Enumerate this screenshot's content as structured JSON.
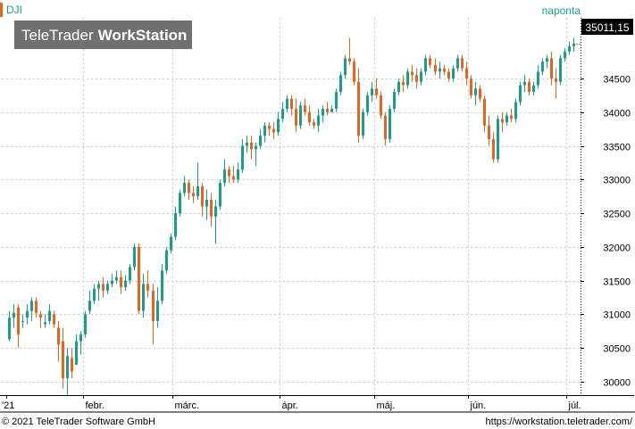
{
  "header": {
    "symbol": "DJI",
    "period": "naponta"
  },
  "watermark": {
    "brand_light": "TeleTrader",
    "brand_bold": "WorkStation"
  },
  "footer": {
    "copyright": "© 2021 TeleTrader Software GmbH",
    "url": "https://workstation.teletrader.com/"
  },
  "colors": {
    "up": "#1a9e8c",
    "down": "#e8631c",
    "accent": "#1a9e8c",
    "grid": "#c8c8c8"
  },
  "chart_data": {
    "type": "candlestick",
    "title": "",
    "xlabel": "",
    "ylabel": "",
    "ylim": [
      29800,
      35400
    ],
    "y_ticks": [
      30000,
      30500,
      31000,
      31500,
      32000,
      32500,
      33000,
      33500,
      34000,
      34500
    ],
    "last_price": "35011,15",
    "x_labels": [
      {
        "label": "'21",
        "index": 0
      },
      {
        "label": "febr.",
        "index": 17
      },
      {
        "label": "márc.",
        "index": 37
      },
      {
        "label": "ápr.",
        "index": 61
      },
      {
        "label": "máj.",
        "index": 82
      },
      {
        "label": "jún.",
        "index": 103
      },
      {
        "label": "júl.",
        "index": 125
      }
    ],
    "candles": [
      [
        30630,
        31050,
        30600,
        30950
      ],
      [
        30950,
        31150,
        30800,
        31020
      ],
      [
        31100,
        31150,
        30500,
        30700
      ],
      [
        30900,
        31000,
        30800,
        30900
      ],
      [
        30950,
        31150,
        30850,
        31050
      ],
      [
        31050,
        31250,
        30900,
        31200
      ],
      [
        31200,
        31250,
        30950,
        31020
      ],
      [
        31000,
        31050,
        30800,
        30950
      ],
      [
        30850,
        31000,
        30800,
        30880
      ],
      [
        30900,
        31150,
        30850,
        31050
      ],
      [
        31000,
        31050,
        30800,
        30850
      ],
      [
        30800,
        30900,
        30300,
        30550
      ],
      [
        30600,
        30800,
        29900,
        30050
      ],
      [
        30050,
        30500,
        29800,
        30380
      ],
      [
        30350,
        30500,
        30050,
        30150
      ],
      [
        30250,
        30700,
        30250,
        30600
      ],
      [
        30600,
        30750,
        30400,
        30700
      ],
      [
        30700,
        31050,
        30650,
        31000
      ],
      [
        31050,
        31350,
        31000,
        31200
      ],
      [
        31200,
        31450,
        31150,
        31380
      ],
      [
        31380,
        31500,
        31200,
        31450
      ],
      [
        31450,
        31550,
        31250,
        31350
      ],
      [
        31350,
        31500,
        31300,
        31450
      ],
      [
        31450,
        31600,
        31400,
        31500
      ],
      [
        31500,
        31650,
        31450,
        31550
      ],
      [
        31550,
        31650,
        31300,
        31400
      ],
      [
        31400,
        31580,
        31350,
        31500
      ],
      [
        31500,
        31750,
        31450,
        31700
      ],
      [
        31700,
        32050,
        31650,
        32000
      ],
      [
        32000,
        32050,
        31000,
        31050
      ],
      [
        31050,
        31600,
        30950,
        31450
      ],
      [
        31450,
        31650,
        31250,
        31350
      ],
      [
        31350,
        31450,
        30550,
        30900
      ],
      [
        30900,
        31400,
        30800,
        31200
      ],
      [
        31200,
        31750,
        31150,
        31650
      ],
      [
        31650,
        32000,
        31600,
        31950
      ],
      [
        31950,
        32200,
        31900,
        32150
      ],
      [
        32150,
        32600,
        32100,
        32500
      ],
      [
        32500,
        32850,
        32450,
        32800
      ],
      [
        32800,
        33050,
        32750,
        32950
      ],
      [
        32950,
        33000,
        32700,
        32800
      ],
      [
        32800,
        32900,
        32650,
        32750
      ],
      [
        32750,
        33250,
        32700,
        32900
      ],
      [
        32900,
        32950,
        32450,
        32600
      ],
      [
        32600,
        32850,
        32400,
        32700
      ],
      [
        32700,
        32800,
        32300,
        32450
      ],
      [
        32450,
        32700,
        32050,
        32600
      ],
      [
        32600,
        33000,
        32550,
        32950
      ],
      [
        32950,
        33300,
        32900,
        33150
      ],
      [
        33150,
        33200,
        32950,
        33050
      ],
      [
        33050,
        33200,
        32950,
        33000
      ],
      [
        33000,
        33250,
        32950,
        33150
      ],
      [
        33150,
        33600,
        33100,
        33500
      ],
      [
        33500,
        33650,
        33400,
        33550
      ],
      [
        33550,
        33650,
        33300,
        33450
      ],
      [
        33450,
        33550,
        33200,
        33500
      ],
      [
        33500,
        33750,
        33450,
        33650
      ],
      [
        33650,
        33850,
        33550,
        33800
      ],
      [
        33800,
        33850,
        33650,
        33750
      ],
      [
        33750,
        33850,
        33600,
        33700
      ],
      [
        33700,
        34000,
        33650,
        33900
      ],
      [
        33900,
        34150,
        33850,
        34050
      ],
      [
        34050,
        34250,
        34000,
        34200
      ],
      [
        34200,
        34250,
        33950,
        34050
      ],
      [
        34050,
        34200,
        33700,
        33800
      ],
      [
        33800,
        34150,
        33750,
        34100
      ],
      [
        34100,
        34200,
        33950,
        34000
      ],
      [
        34000,
        34100,
        33800,
        33850
      ],
      [
        33850,
        33900,
        33750,
        33800
      ],
      [
        33800,
        34050,
        33700,
        33950
      ],
      [
        33950,
        34100,
        33850,
        34050
      ],
      [
        34050,
        34150,
        33950,
        34000
      ],
      [
        34000,
        34100,
        34000,
        34050
      ],
      [
        34050,
        34350,
        34000,
        34300
      ],
      [
        34300,
        34600,
        34250,
        34550
      ],
      [
        34550,
        34850,
        34500,
        34800
      ],
      [
        34800,
        35100,
        34700,
        34750
      ],
      [
        34750,
        34800,
        34400,
        34450
      ],
      [
        34450,
        34650,
        33550,
        33650
      ],
      [
        33650,
        34050,
        33600,
        34000
      ],
      [
        34000,
        34300,
        33950,
        34250
      ],
      [
        34250,
        34450,
        34150,
        34350
      ],
      [
        34350,
        34500,
        34200,
        34250
      ],
      [
        34250,
        34300,
        33900,
        33950
      ],
      [
        33950,
        34000,
        33500,
        33600
      ],
      [
        33600,
        34100,
        33550,
        34050
      ],
      [
        34050,
        34350,
        34000,
        34300
      ],
      [
        34300,
        34500,
        34250,
        34450
      ],
      [
        34450,
        34550,
        34300,
        34400
      ],
      [
        34400,
        34650,
        34350,
        34600
      ],
      [
        34600,
        34700,
        34450,
        34550
      ],
      [
        34550,
        34650,
        34350,
        34450
      ],
      [
        34450,
        34650,
        34400,
        34600
      ],
      [
        34600,
        34850,
        34550,
        34800
      ],
      [
        34800,
        34850,
        34650,
        34700
      ],
      [
        34700,
        34800,
        34550,
        34600
      ],
      [
        34600,
        34750,
        34500,
        34650
      ],
      [
        34650,
        34700,
        34550,
        34600
      ],
      [
        34600,
        34650,
        34450,
        34500
      ],
      [
        34500,
        34700,
        34450,
        34650
      ],
      [
        34650,
        34850,
        34600,
        34800
      ],
      [
        34800,
        34850,
        34600,
        34650
      ],
      [
        34650,
        34750,
        34400,
        34500
      ],
      [
        34500,
        34550,
        34200,
        34250
      ],
      [
        34250,
        34450,
        34100,
        34350
      ],
      [
        34350,
        34400,
        34150,
        34200
      ],
      [
        34200,
        34250,
        33700,
        33800
      ],
      [
        33800,
        33950,
        33500,
        33600
      ],
      [
        33600,
        33700,
        33250,
        33300
      ],
      [
        33300,
        33950,
        33250,
        33900
      ],
      [
        33900,
        34000,
        33700,
        33850
      ],
      [
        33850,
        34000,
        33800,
        33950
      ],
      [
        33950,
        34050,
        33850,
        33900
      ],
      [
        33900,
        34200,
        33850,
        34150
      ],
      [
        34150,
        34450,
        34100,
        34400
      ],
      [
        34400,
        34550,
        34300,
        34450
      ],
      [
        34450,
        34500,
        34250,
        34300
      ],
      [
        34300,
        34450,
        34250,
        34400
      ],
      [
        34400,
        34700,
        34350,
        34600
      ],
      [
        34600,
        34800,
        34550,
        34750
      ],
      [
        34750,
        34850,
        34650,
        34800
      ],
      [
        34800,
        34900,
        34400,
        34500
      ],
      [
        34500,
        34650,
        34200,
        34450
      ],
      [
        34450,
        34850,
        34400,
        34800
      ],
      [
        34800,
        34950,
        34750,
        34900
      ],
      [
        34900,
        35050,
        34850,
        34980
      ],
      [
        34980,
        35100,
        34900,
        35011
      ]
    ]
  }
}
